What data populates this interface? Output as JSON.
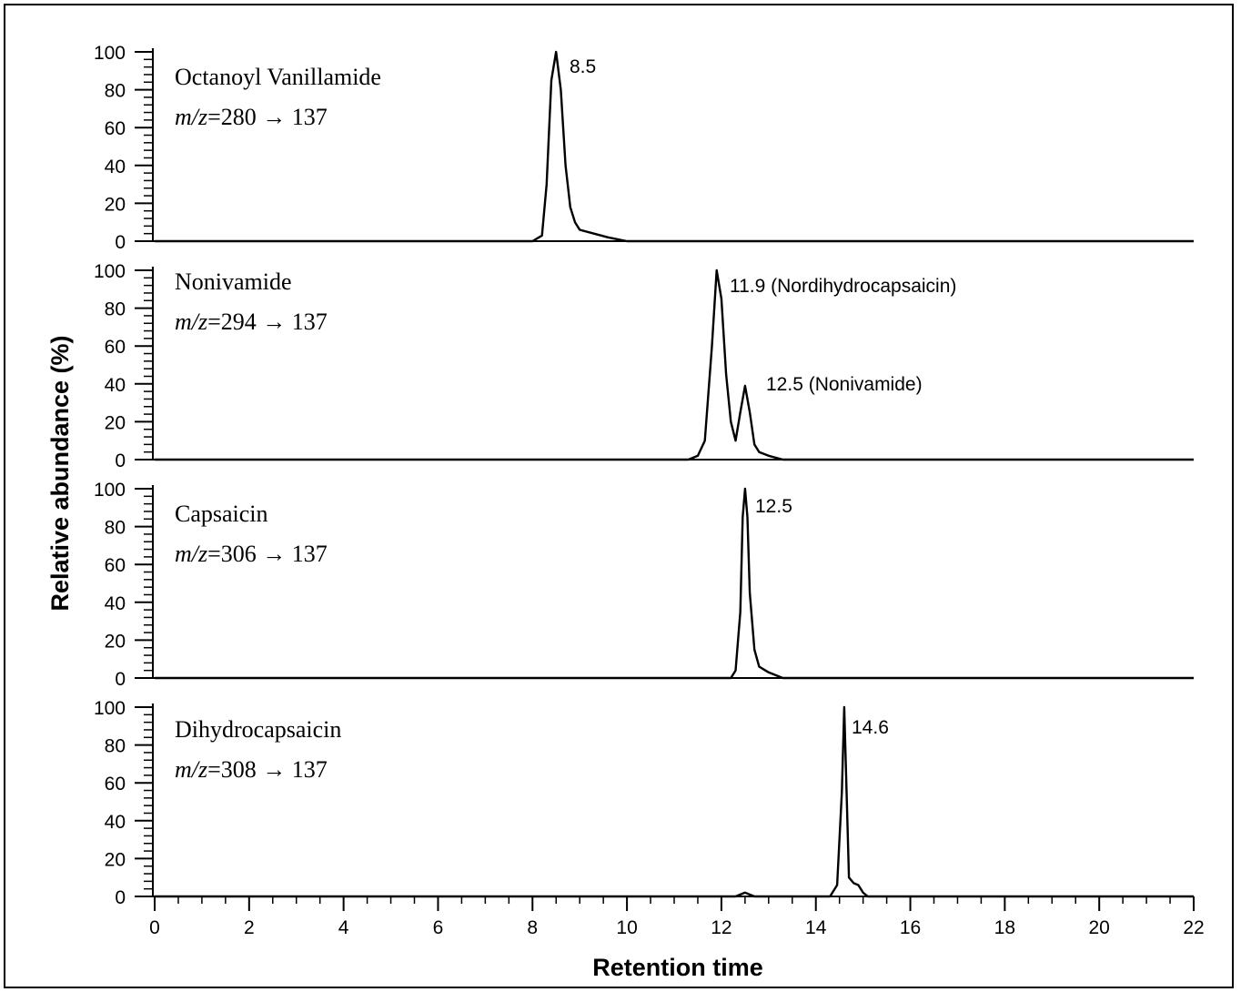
{
  "chart_data": {
    "type": "line",
    "xlabel": "Retention time",
    "ylabel": "Relative abundance (%)",
    "xlim": [
      0,
      22
    ],
    "ylim": [
      0,
      100
    ],
    "x_ticks": [
      0,
      2,
      4,
      6,
      8,
      10,
      12,
      14,
      16,
      18,
      20,
      22
    ],
    "y_ticks": [
      0,
      20,
      40,
      60,
      80,
      100
    ],
    "grid": false,
    "panels": [
      {
        "compound": "Octanoyl Vanillamide",
        "mz_prefix": "m/z",
        "mz_value": "=280 → 137",
        "peak_labels": [
          "8.5"
        ],
        "x": [
          0,
          8.0,
          8.2,
          8.3,
          8.4,
          8.5,
          8.6,
          8.7,
          8.8,
          8.9,
          9.0,
          9.3,
          9.6,
          9.8,
          10.0,
          22
        ],
        "y": [
          0,
          0,
          3,
          30,
          85,
          100,
          80,
          40,
          18,
          10,
          6,
          4,
          2,
          1,
          0,
          0
        ]
      },
      {
        "compound": "Nonivamide",
        "mz_prefix": "m/z",
        "mz_value": "=294 → 137",
        "peak_labels": [
          "11.9 (Nordihydrocapsaicin)",
          "12.5 (Nonivamide)"
        ],
        "x": [
          0,
          11.3,
          11.5,
          11.65,
          11.8,
          11.9,
          12.0,
          12.1,
          12.2,
          12.3,
          12.4,
          12.5,
          12.6,
          12.7,
          12.8,
          13.0,
          13.3,
          22
        ],
        "y": [
          0,
          0,
          2,
          10,
          60,
          100,
          85,
          45,
          20,
          10,
          25,
          39,
          25,
          8,
          4,
          2,
          0,
          0
        ]
      },
      {
        "compound": "Capsaicin",
        "mz_prefix": "m/z",
        "mz_value": "=306 → 137",
        "peak_labels": [
          "12.5"
        ],
        "x": [
          0,
          12.2,
          12.3,
          12.4,
          12.45,
          12.5,
          12.55,
          12.6,
          12.7,
          12.8,
          13.0,
          13.3,
          22
        ],
        "y": [
          0,
          0,
          4,
          35,
          85,
          100,
          85,
          45,
          15,
          6,
          3,
          0,
          0
        ]
      },
      {
        "compound": "Dihydrocapsaicin",
        "mz_prefix": "m/z",
        "mz_value": "=308 → 137",
        "peak_labels": [
          "14.6"
        ],
        "x": [
          0,
          12.3,
          12.5,
          12.7,
          14.3,
          14.45,
          14.55,
          14.6,
          14.65,
          14.7,
          14.8,
          14.9,
          15.0,
          15.1,
          22
        ],
        "y": [
          0,
          0,
          2,
          0,
          0,
          6,
          55,
          100,
          55,
          10,
          7,
          6,
          2,
          0,
          0
        ]
      }
    ]
  }
}
